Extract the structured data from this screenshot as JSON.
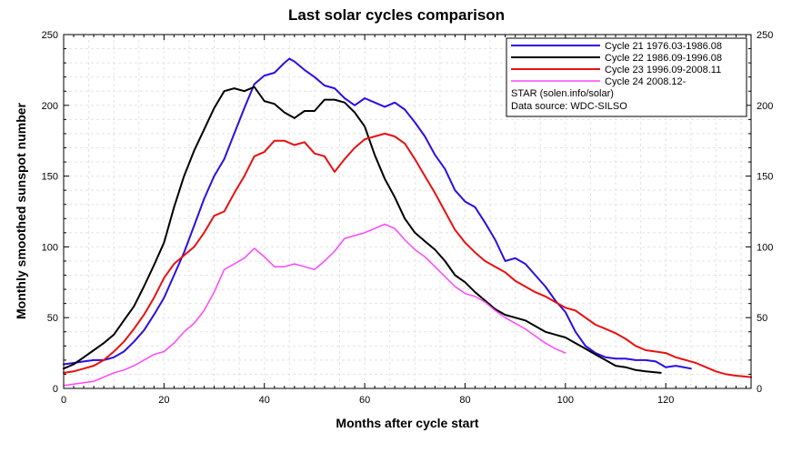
{
  "chart_data": {
    "type": "line",
    "title": "Last solar cycles comparison",
    "xlabel": "Months after cycle start",
    "ylabel": "Monthly smoothed sunspot number",
    "xlim": [
      0,
      137
    ],
    "ylim": [
      0,
      250
    ],
    "x_ticks": [
      0,
      20,
      40,
      60,
      80,
      100,
      120
    ],
    "y_ticks": [
      0,
      50,
      100,
      150,
      200,
      250
    ],
    "grid": true,
    "legend_position": "top-right",
    "series": [
      {
        "name": "Cycle 21 1976.03-1986.08",
        "color": "#2b0fe0",
        "x": [
          0,
          2,
          4,
          6,
          8,
          10,
          12,
          14,
          16,
          18,
          20,
          22,
          24,
          26,
          28,
          30,
          32,
          34,
          36,
          38,
          40,
          42,
          44,
          45,
          46,
          48,
          50,
          52,
          54,
          56,
          58,
          60,
          62,
          64,
          66,
          68,
          70,
          72,
          74,
          76,
          78,
          80,
          82,
          84,
          86,
          88,
          90,
          92,
          94,
          96,
          98,
          100,
          102,
          104,
          106,
          108,
          110,
          112,
          114,
          116,
          118,
          120,
          122,
          125
        ],
        "values": [
          17,
          18,
          19,
          20,
          20,
          22,
          26,
          33,
          41,
          52,
          64,
          80,
          96,
          115,
          134,
          150,
          162,
          180,
          198,
          215,
          221,
          223,
          230,
          233,
          231,
          225,
          220,
          214,
          212,
          205,
          200,
          205,
          202,
          199,
          202,
          197,
          188,
          178,
          165,
          155,
          140,
          132,
          128,
          117,
          105,
          90,
          92,
          88,
          80,
          72,
          62,
          54,
          40,
          30,
          25,
          22,
          21,
          21,
          20,
          20,
          19,
          15,
          16,
          14
        ],
        "line_width": 2
      },
      {
        "name": "Cycle 22 1986.09-1996.08",
        "color": "#000000",
        "x": [
          0,
          2,
          4,
          6,
          8,
          10,
          12,
          14,
          16,
          18,
          20,
          22,
          24,
          26,
          28,
          30,
          32,
          34,
          36,
          38,
          40,
          42,
          44,
          46,
          48,
          50,
          52,
          54,
          56,
          58,
          60,
          62,
          64,
          66,
          68,
          70,
          72,
          74,
          76,
          78,
          80,
          82,
          84,
          86,
          88,
          90,
          92,
          94,
          96,
          98,
          100,
          102,
          104,
          106,
          108,
          110,
          112,
          114,
          116,
          119
        ],
        "values": [
          14,
          17,
          22,
          27,
          32,
          38,
          48,
          58,
          72,
          87,
          103,
          128,
          150,
          168,
          183,
          198,
          210,
          212,
          210,
          213,
          203,
          201,
          195,
          191,
          196,
          196,
          204,
          204,
          202,
          195,
          185,
          165,
          148,
          135,
          120,
          110,
          104,
          98,
          90,
          80,
          75,
          68,
          62,
          56,
          52,
          50,
          48,
          44,
          40,
          38,
          36,
          32,
          28,
          24,
          20,
          16,
          15,
          13,
          12,
          11
        ],
        "line_width": 2
      },
      {
        "name": "Cycle 23 1996.09-2008.11",
        "color": "#e81010",
        "x": [
          0,
          2,
          4,
          6,
          8,
          10,
          12,
          14,
          16,
          18,
          20,
          22,
          24,
          26,
          28,
          30,
          32,
          34,
          36,
          38,
          40,
          42,
          44,
          46,
          48,
          50,
          52,
          54,
          56,
          58,
          60,
          62,
          64,
          66,
          68,
          70,
          72,
          74,
          76,
          78,
          80,
          82,
          84,
          86,
          88,
          90,
          92,
          94,
          96,
          98,
          100,
          102,
          104,
          106,
          108,
          110,
          112,
          114,
          116,
          118,
          120,
          122,
          124,
          126,
          128,
          130,
          132,
          134,
          137
        ],
        "values": [
          11,
          12,
          14,
          16,
          20,
          26,
          33,
          42,
          52,
          64,
          78,
          88,
          94,
          100,
          110,
          122,
          125,
          138,
          150,
          164,
          167,
          175,
          175,
          172,
          174,
          166,
          164,
          153,
          162,
          170,
          176,
          178,
          180,
          178,
          173,
          162,
          150,
          138,
          125,
          112,
          103,
          96,
          90,
          86,
          82,
          76,
          72,
          68,
          65,
          61,
          57,
          55,
          50,
          45,
          42,
          39,
          35,
          30,
          27,
          26,
          25,
          22,
          20,
          18,
          15,
          12,
          10,
          9,
          8
        ],
        "line_width": 2
      },
      {
        "name": "Cycle 24 2008.12-",
        "color": "#ff44ff",
        "x": [
          0,
          2,
          4,
          6,
          8,
          10,
          12,
          14,
          16,
          18,
          20,
          22,
          24,
          26,
          28,
          30,
          32,
          34,
          36,
          38,
          40,
          42,
          44,
          46,
          48,
          50,
          52,
          54,
          56,
          58,
          60,
          62,
          64,
          66,
          68,
          70,
          72,
          74,
          76,
          78,
          80,
          82,
          84,
          86,
          88,
          90,
          92,
          94,
          96,
          98,
          100
        ],
        "values": [
          2,
          3,
          4,
          5,
          8,
          11,
          13,
          16,
          20,
          24,
          26,
          32,
          40,
          46,
          55,
          68,
          84,
          88,
          92,
          99,
          93,
          86,
          86,
          88,
          86,
          84,
          90,
          97,
          106,
          108,
          110,
          113,
          116,
          113,
          105,
          98,
          93,
          86,
          79,
          72,
          67,
          65,
          61,
          55,
          50,
          46,
          42,
          37,
          32,
          28,
          25
        ],
        "line_width": 1.5
      }
    ],
    "annotations": [
      "STAR (solen.info/solar)",
      "Data source: WDC-SILSO"
    ]
  }
}
